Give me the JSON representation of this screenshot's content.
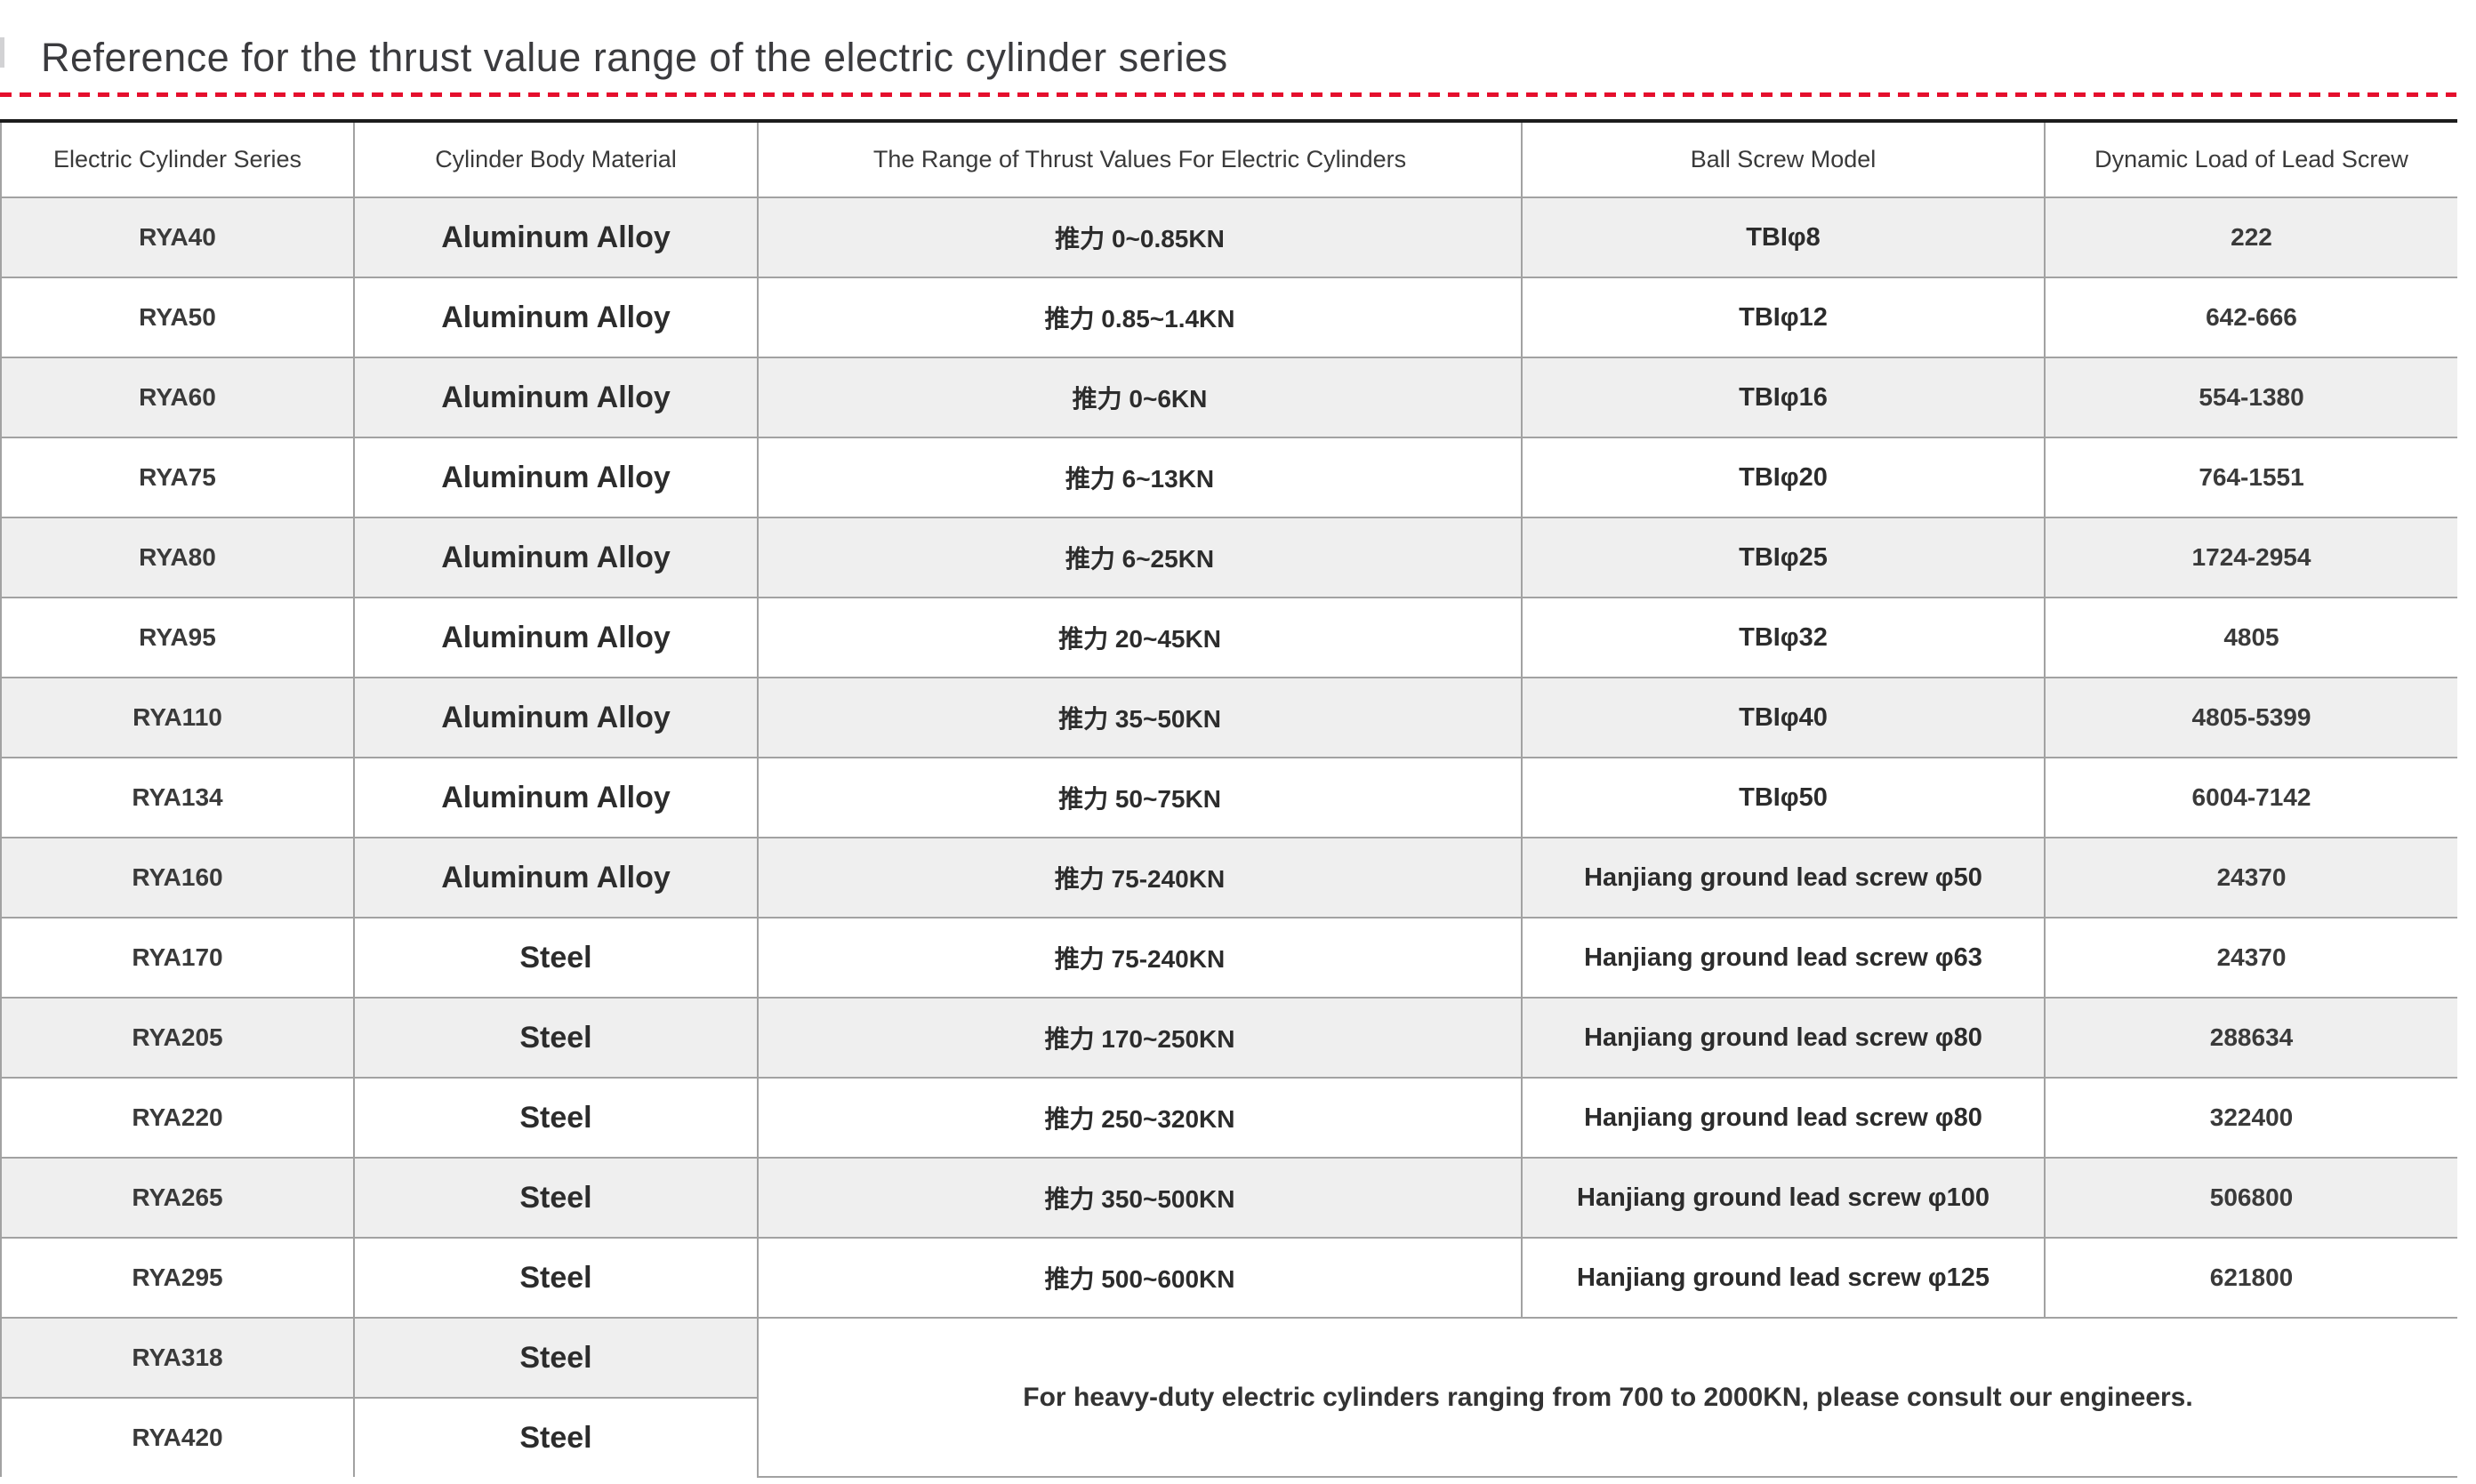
{
  "page": {
    "title": "Reference for the thrust value range of the electric cylinder series"
  },
  "colors": {
    "accent_dashed_line": "#e50f2d",
    "table_top_border": "#1c1c1c",
    "row_band_gray": "#efefef",
    "cell_border_gray": "#a2a2a2",
    "text_dark": "#2c2c2c"
  },
  "table": {
    "headers": [
      "Electric Cylinder Series",
      "Cylinder Body Material",
      "The Range of Thrust Values For Electric Cylinders",
      "Ball Screw Model",
      "Dynamic Load of Lead Screw"
    ],
    "rows": [
      {
        "series": "RYA40",
        "material": "Aluminum Alloy",
        "thrust": "推力 0~0.85KN",
        "screw": "TBIφ8",
        "load": "222"
      },
      {
        "series": "RYA50",
        "material": "Aluminum Alloy",
        "thrust": "推力 0.85~1.4KN",
        "screw": "TBIφ12",
        "load": "642-666"
      },
      {
        "series": "RYA60",
        "material": "Aluminum Alloy",
        "thrust": "推力 0~6KN",
        "screw": "TBIφ16",
        "load": "554-1380"
      },
      {
        "series": "RYA75",
        "material": "Aluminum Alloy",
        "thrust": "推力 6~13KN",
        "screw": "TBIφ20",
        "load": "764-1551"
      },
      {
        "series": "RYA80",
        "material": "Aluminum Alloy",
        "thrust": "推力 6~25KN",
        "screw": "TBIφ25",
        "load": "1724-2954"
      },
      {
        "series": "RYA95",
        "material": "Aluminum Alloy",
        "thrust": "推力 20~45KN",
        "screw": "TBIφ32",
        "load": "4805"
      },
      {
        "series": "RYA110",
        "material": "Aluminum Alloy",
        "thrust": "推力 35~50KN",
        "screw": "TBIφ40",
        "load": "4805-5399"
      },
      {
        "series": "RYA134",
        "material": "Aluminum Alloy",
        "thrust": "推力 50~75KN",
        "screw": "TBIφ50",
        "load": "6004-7142"
      },
      {
        "series": "RYA160",
        "material": "Aluminum Alloy",
        "thrust": "推力 75-240KN",
        "screw": "Hanjiang ground lead screw φ50",
        "load": "24370"
      },
      {
        "series": "RYA170",
        "material": "Steel",
        "thrust": "推力 75-240KN",
        "screw": "Hanjiang ground lead screw φ63",
        "load": "24370"
      },
      {
        "series": "RYA205",
        "material": "Steel",
        "thrust": "推力 170~250KN",
        "screw": "Hanjiang ground lead screw φ80",
        "load": "288634"
      },
      {
        "series": "RYA220",
        "material": "Steel",
        "thrust": "推力 250~320KN",
        "screw": "Hanjiang ground lead screw φ80",
        "load": "322400"
      },
      {
        "series": "RYA265",
        "material": "Steel",
        "thrust": "推力 350~500KN",
        "screw": "Hanjiang ground lead screw φ100",
        "load": "506800"
      },
      {
        "series": "RYA295",
        "material": "Steel",
        "thrust": "推力 500~600KN",
        "screw": "Hanjiang ground lead screw φ125",
        "load": "621800"
      },
      {
        "series": "RYA318",
        "material": "Steel"
      },
      {
        "series": "RYA420",
        "material": "Steel"
      }
    ],
    "footer_note": "For heavy-duty electric cylinders ranging from 700 to 2000KN, please consult our engineers."
  }
}
